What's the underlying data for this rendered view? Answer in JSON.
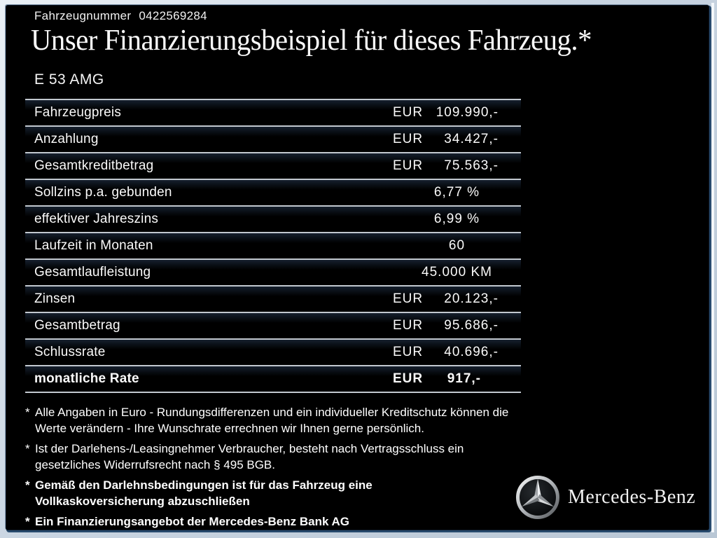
{
  "header": {
    "vehicle_number_label": "Fahrzeugnummer",
    "vehicle_number": "0422569284",
    "title": "Unser Finanzierungsbeispiel für dieses Fahrzeug.*",
    "model": "E 53 AMG"
  },
  "table": {
    "rows": [
      {
        "label": "Fahrzeugpreis",
        "currency": "EUR",
        "value": "109.990,-",
        "bold": false
      },
      {
        "label": "Anzahlung",
        "currency": "EUR",
        "value": "34.427,-",
        "bold": false
      },
      {
        "label": "Gesamtkreditbetrag",
        "currency": "EUR",
        "value": "75.563,-",
        "bold": false
      },
      {
        "label": "Sollzins p.a. gebunden",
        "currency": "",
        "value": "6,77 %",
        "bold": false
      },
      {
        "label": "effektiver Jahreszins",
        "currency": "",
        "value": "6,99 %",
        "bold": false
      },
      {
        "label": "Laufzeit in Monaten",
        "currency": "",
        "value": "60",
        "bold": false
      },
      {
        "label": "Gesamtlaufleistung",
        "currency": "",
        "value": "45.000 KM",
        "bold": false
      },
      {
        "label": "Zinsen",
        "currency": "EUR",
        "value": "20.123,-",
        "bold": false
      },
      {
        "label": "Gesamtbetrag",
        "currency": "EUR",
        "value": "95.686,-",
        "bold": false
      },
      {
        "label": "Schlussrate",
        "currency": "EUR",
        "value": "40.696,-",
        "bold": false
      },
      {
        "label": "monatliche Rate",
        "currency": "EUR",
        "value": "917,-",
        "bold": true
      }
    ]
  },
  "footnotes": [
    {
      "marker": "*",
      "bold": false,
      "text": "Alle Angaben in Euro - Rundungsdifferenzen und ein individueller Kreditschutz können die Werte verändern - Ihre Wunschrate errechnen wir Ihnen gerne persönlich."
    },
    {
      "marker": "*",
      "bold": false,
      "text": "Ist der Darlehens-/Leasingnehmer Verbraucher, besteht nach Vertragsschluss ein gesetzliches Widerrufsrecht nach § 495 BGB."
    },
    {
      "marker": "*",
      "bold": true,
      "text": "Gemäß den Darlehnsbedingungen ist für das Fahrzeug eine Vollkaskoversicherung abzuschließen"
    },
    {
      "marker": "*",
      "bold": true,
      "text": "Ein Finanzierungsangebot der Mercedes-Benz Bank AG"
    }
  ],
  "brand": {
    "logo": "mercedes-star-icon",
    "wordmark": "Mercedes-Benz"
  },
  "colors": {
    "page_background": "#c9d5e2",
    "content_background": "#000000",
    "frame_outline_navy": "#274a6d",
    "table_line": "#c2c8cf",
    "text": "#ffffff"
  }
}
